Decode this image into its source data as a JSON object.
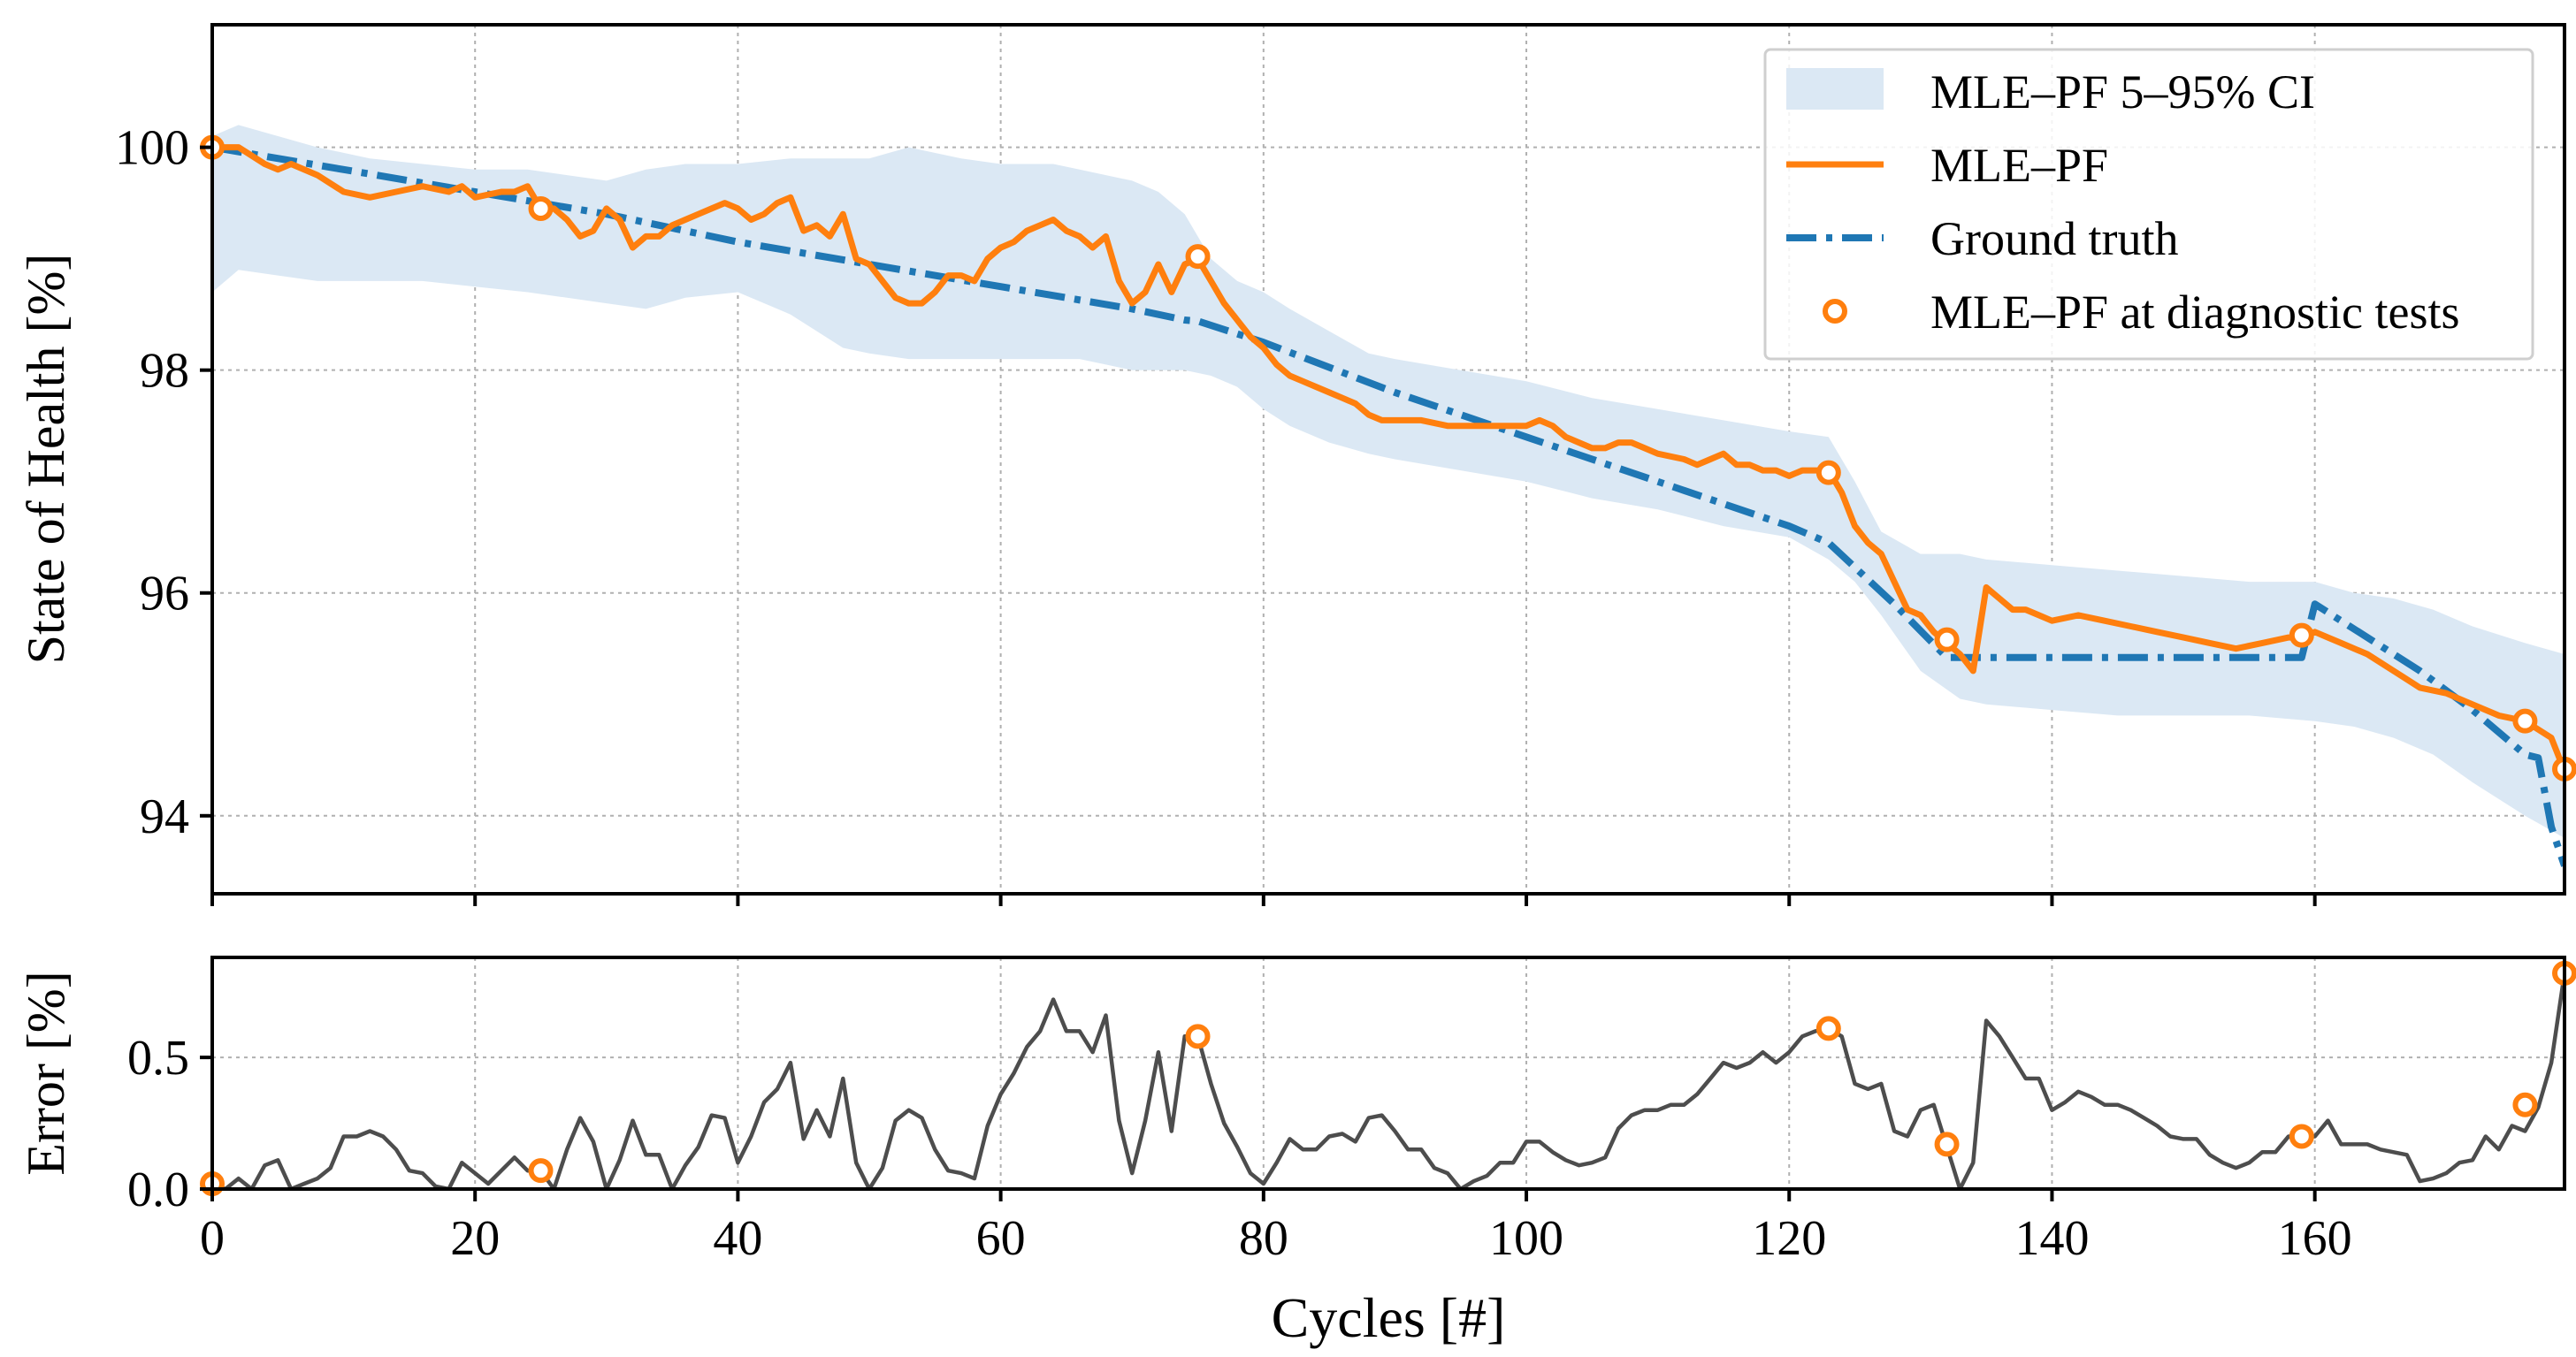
{
  "chart_data": [
    {
      "type": "line",
      "ylabel": "State of Health [%]",
      "xlim": [
        0,
        179
      ],
      "ylim": [
        93.3,
        101.1
      ],
      "xticks": [
        0,
        20,
        40,
        60,
        80,
        100,
        120,
        140,
        160
      ],
      "yticks": [
        94,
        96,
        98,
        100
      ],
      "ytick_labels": [
        "94",
        "96",
        "98",
        "100"
      ],
      "grid": true,
      "legend_position": "top-right",
      "legend": {
        "ci": "MLE–PF 5–95% CI",
        "pf": "MLE–PF",
        "gt": "Ground truth",
        "diag": "MLE–PF at diagnostic tests"
      },
      "colors": {
        "pf": "#ff7f0e",
        "gt": "#1f77b4",
        "ci": "#dbe8f4"
      },
      "ci_band": {
        "x": [
          0,
          2,
          5,
          8,
          12,
          16,
          20,
          24,
          27,
          30,
          33,
          36,
          40,
          44,
          48,
          50,
          53,
          57,
          60,
          64,
          66,
          68,
          70,
          72,
          74,
          76,
          78,
          80,
          82,
          85,
          88,
          90,
          95,
          100,
          105,
          110,
          115,
          120,
          123,
          125,
          127,
          130,
          133,
          135,
          140,
          145,
          150,
          155,
          160,
          163,
          166,
          169,
          172,
          176,
          179
        ],
        "lower": [
          98.7,
          98.9,
          98.85,
          98.8,
          98.8,
          98.8,
          98.75,
          98.7,
          98.65,
          98.6,
          98.55,
          98.65,
          98.7,
          98.5,
          98.2,
          98.15,
          98.1,
          98.1,
          98.1,
          98.1,
          98.1,
          98.05,
          98.0,
          98.0,
          98.0,
          97.95,
          97.85,
          97.65,
          97.5,
          97.35,
          97.25,
          97.2,
          97.1,
          97.0,
          96.85,
          96.75,
          96.6,
          96.5,
          96.3,
          96.1,
          95.8,
          95.3,
          95.05,
          95.0,
          94.95,
          94.9,
          94.9,
          94.9,
          94.85,
          94.8,
          94.7,
          94.55,
          94.3,
          94.0,
          93.8
        ],
        "upper": [
          100.1,
          100.2,
          100.1,
          100.0,
          99.9,
          99.85,
          99.8,
          99.8,
          99.75,
          99.7,
          99.8,
          99.85,
          99.85,
          99.9,
          99.9,
          99.9,
          100.0,
          99.9,
          99.85,
          99.85,
          99.8,
          99.75,
          99.7,
          99.6,
          99.4,
          99.0,
          98.8,
          98.7,
          98.55,
          98.35,
          98.15,
          98.1,
          98.0,
          97.9,
          97.75,
          97.65,
          97.55,
          97.45,
          97.4,
          97.0,
          96.55,
          96.35,
          96.35,
          96.3,
          96.25,
          96.2,
          96.15,
          96.1,
          96.1,
          96.0,
          95.95,
          95.85,
          95.7,
          95.55,
          95.45
        ]
      },
      "ground_truth": {
        "x": [
          0,
          10,
          20,
          30,
          40,
          50,
          60,
          70,
          74,
          75,
          80,
          90,
          100,
          110,
          120,
          123,
          128,
          132,
          159,
          160,
          168,
          172,
          176,
          177,
          178,
          179
        ],
        "y": [
          100.0,
          99.8,
          99.6,
          99.4,
          99.15,
          98.95,
          98.75,
          98.55,
          98.45,
          98.44,
          98.25,
          97.8,
          97.4,
          97.0,
          96.6,
          96.45,
          95.9,
          95.42,
          95.42,
          95.9,
          95.3,
          94.95,
          94.55,
          94.52,
          93.9,
          93.55
        ]
      },
      "mle_pf": {
        "x": [
          0,
          2,
          4,
          5,
          6,
          8,
          10,
          12,
          14,
          16,
          18,
          19,
          20,
          22,
          23,
          24,
          25,
          26,
          27,
          28,
          29,
          30,
          31,
          32,
          33,
          34,
          35,
          36,
          37,
          38,
          39,
          40,
          41,
          42,
          43,
          44,
          45,
          46,
          47,
          48,
          49,
          50,
          51,
          52,
          53,
          54,
          55,
          56,
          57,
          58,
          59,
          60,
          61,
          62,
          63,
          64,
          65,
          66,
          67,
          68,
          69,
          70,
          71,
          72,
          73,
          74,
          75,
          76,
          77,
          78,
          79,
          80,
          81,
          82,
          83,
          84,
          85,
          86,
          87,
          88,
          89,
          90,
          92,
          94,
          96,
          98,
          100,
          101,
          102,
          103,
          104,
          105,
          106,
          107,
          108,
          109,
          110,
          112,
          113,
          114,
          115,
          116,
          117,
          118,
          119,
          120,
          121,
          122,
          123,
          124,
          125,
          126,
          127,
          128,
          129,
          130,
          131,
          132,
          133,
          134,
          135,
          136,
          137,
          138,
          139,
          140,
          142,
          144,
          146,
          148,
          150,
          152,
          154,
          156,
          158,
          159,
          160,
          161,
          162,
          164,
          166,
          168,
          170,
          172,
          174,
          176,
          178,
          179
        ],
        "y": [
          100.0,
          100.0,
          99.85,
          99.8,
          99.85,
          99.75,
          99.6,
          99.55,
          99.6,
          99.65,
          99.6,
          99.65,
          99.55,
          99.6,
          99.6,
          99.65,
          99.45,
          99.45,
          99.35,
          99.2,
          99.25,
          99.45,
          99.35,
          99.1,
          99.2,
          99.2,
          99.3,
          99.35,
          99.4,
          99.45,
          99.5,
          99.45,
          99.35,
          99.4,
          99.5,
          99.55,
          99.25,
          99.3,
          99.2,
          99.4,
          99.0,
          98.95,
          98.8,
          98.65,
          98.6,
          98.6,
          98.7,
          98.85,
          98.85,
          98.8,
          99.0,
          99.1,
          99.15,
          99.25,
          99.3,
          99.35,
          99.25,
          99.2,
          99.1,
          99.2,
          98.8,
          98.6,
          98.7,
          98.95,
          98.7,
          98.95,
          99.0,
          98.8,
          98.6,
          98.45,
          98.3,
          98.2,
          98.05,
          97.95,
          97.9,
          97.85,
          97.8,
          97.75,
          97.7,
          97.6,
          97.55,
          97.55,
          97.55,
          97.5,
          97.5,
          97.5,
          97.5,
          97.55,
          97.5,
          97.4,
          97.35,
          97.3,
          97.3,
          97.35,
          97.35,
          97.3,
          97.25,
          97.2,
          97.15,
          97.2,
          97.25,
          97.15,
          97.15,
          97.1,
          97.1,
          97.05,
          97.1,
          97.1,
          97.1,
          96.9,
          96.6,
          96.45,
          96.35,
          96.1,
          95.85,
          95.8,
          95.65,
          95.55,
          95.45,
          95.3,
          96.05,
          95.95,
          95.85,
          95.85,
          95.8,
          95.75,
          95.8,
          95.75,
          95.7,
          95.65,
          95.6,
          95.55,
          95.5,
          95.55,
          95.6,
          95.6,
          95.65,
          95.6,
          95.55,
          95.45,
          95.3,
          95.15,
          95.1,
          95.0,
          94.9,
          94.85,
          94.7,
          94.4
        ]
      },
      "diagnostic_points": {
        "x": [
          0,
          25,
          75,
          123,
          132,
          159,
          176,
          179
        ],
        "y": [
          100.0,
          99.45,
          99.02,
          97.08,
          95.58,
          95.62,
          94.85,
          94.42
        ]
      }
    },
    {
      "type": "line",
      "xlabel": "Cycles [#]",
      "ylabel": "Error [%]",
      "xlim": [
        0,
        179
      ],
      "ylim": [
        0,
        0.88
      ],
      "xticks": [
        0,
        20,
        40,
        60,
        80,
        100,
        120,
        140,
        160
      ],
      "xtick_labels": [
        "0",
        "20",
        "40",
        "60",
        "80",
        "100",
        "120",
        "140",
        "160"
      ],
      "yticks": [
        0,
        0.5
      ],
      "ytick_labels": [
        "0.0",
        "0.5"
      ],
      "grid": true,
      "colors": {
        "error": "#4d4d4d",
        "diag": "#ff7f0e"
      },
      "error": {
        "x": [
          0,
          1,
          2,
          3,
          4,
          5,
          6,
          7,
          8,
          9,
          10,
          11,
          12,
          13,
          14,
          15,
          16,
          17,
          18,
          19,
          20,
          21,
          22,
          23,
          24,
          25,
          26,
          27,
          28,
          29,
          30,
          31,
          32,
          33,
          34,
          35,
          36,
          37,
          38,
          39,
          40,
          41,
          42,
          43,
          44,
          45,
          46,
          47,
          48,
          49,
          50,
          51,
          52,
          53,
          54,
          55,
          56,
          57,
          58,
          59,
          60,
          61,
          62,
          63,
          64,
          65,
          66,
          67,
          68,
          69,
          70,
          71,
          72,
          73,
          74,
          75,
          76,
          77,
          78,
          79,
          80,
          81,
          82,
          83,
          84,
          85,
          86,
          87,
          88,
          89,
          90,
          91,
          92,
          93,
          94,
          95,
          96,
          97,
          98,
          99,
          100,
          101,
          102,
          103,
          104,
          105,
          106,
          107,
          108,
          109,
          110,
          111,
          112,
          113,
          114,
          115,
          116,
          117,
          118,
          119,
          120,
          121,
          122,
          123,
          124,
          125,
          126,
          127,
          128,
          129,
          130,
          131,
          132,
          133,
          134,
          135,
          136,
          137,
          138,
          139,
          140,
          141,
          142,
          143,
          144,
          145,
          146,
          147,
          148,
          149,
          150,
          151,
          152,
          153,
          154,
          155,
          156,
          157,
          158,
          159,
          160,
          161,
          162,
          163,
          164,
          165,
          166,
          167,
          168,
          169,
          170,
          171,
          172,
          173,
          174,
          175,
          176,
          177,
          178,
          179
        ],
        "y": [
          0.02,
          0.0,
          0.04,
          0.0,
          0.09,
          0.11,
          0.0,
          0.02,
          0.04,
          0.08,
          0.2,
          0.2,
          0.22,
          0.2,
          0.15,
          0.07,
          0.06,
          0.01,
          0.0,
          0.1,
          0.06,
          0.02,
          0.07,
          0.12,
          0.07,
          0.07,
          0.0,
          0.15,
          0.27,
          0.18,
          0.0,
          0.11,
          0.26,
          0.13,
          0.13,
          0.0,
          0.09,
          0.16,
          0.28,
          0.27,
          0.1,
          0.2,
          0.33,
          0.38,
          0.48,
          0.19,
          0.3,
          0.2,
          0.42,
          0.1,
          0.0,
          0.08,
          0.26,
          0.3,
          0.27,
          0.15,
          0.07,
          0.06,
          0.04,
          0.24,
          0.36,
          0.44,
          0.54,
          0.6,
          0.72,
          0.6,
          0.6,
          0.52,
          0.66,
          0.26,
          0.06,
          0.26,
          0.52,
          0.22,
          0.58,
          0.58,
          0.4,
          0.25,
          0.16,
          0.06,
          0.02,
          0.1,
          0.19,
          0.15,
          0.15,
          0.2,
          0.21,
          0.18,
          0.27,
          0.28,
          0.22,
          0.15,
          0.15,
          0.08,
          0.06,
          0.0,
          0.03,
          0.05,
          0.1,
          0.1,
          0.18,
          0.18,
          0.14,
          0.11,
          0.09,
          0.1,
          0.12,
          0.23,
          0.28,
          0.3,
          0.3,
          0.32,
          0.32,
          0.36,
          0.42,
          0.48,
          0.46,
          0.48,
          0.52,
          0.48,
          0.52,
          0.58,
          0.6,
          0.61,
          0.58,
          0.4,
          0.38,
          0.4,
          0.22,
          0.2,
          0.3,
          0.32,
          0.16,
          0.0,
          0.1,
          0.64,
          0.58,
          0.5,
          0.42,
          0.42,
          0.3,
          0.33,
          0.37,
          0.35,
          0.32,
          0.32,
          0.3,
          0.27,
          0.24,
          0.2,
          0.19,
          0.19,
          0.13,
          0.1,
          0.08,
          0.1,
          0.14,
          0.14,
          0.2,
          0.2,
          0.2,
          0.26,
          0.17,
          0.17,
          0.17,
          0.15,
          0.14,
          0.13,
          0.03,
          0.04,
          0.06,
          0.1,
          0.11,
          0.2,
          0.15,
          0.24,
          0.22,
          0.31,
          0.48,
          0.82
        ]
      },
      "diagnostic_points": {
        "x": [
          0,
          25,
          75,
          123,
          132,
          159,
          176,
          179
        ],
        "y": [
          0.02,
          0.07,
          0.58,
          0.61,
          0.17,
          0.2,
          0.32,
          0.82
        ]
      }
    }
  ]
}
